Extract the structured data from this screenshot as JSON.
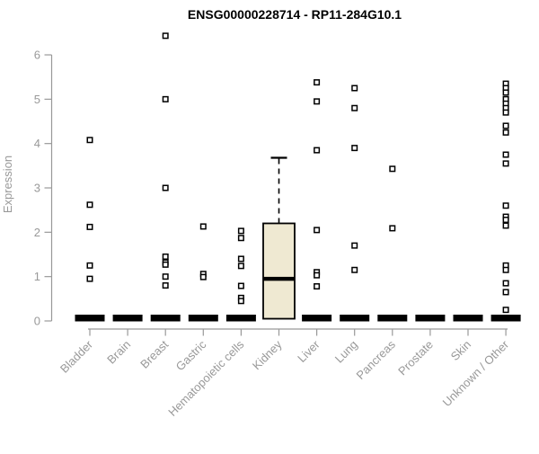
{
  "chart_data": {
    "type": "boxplot",
    "title": "ENSG00000228714 - RP11-284G10.1",
    "ylabel": "Expression",
    "xlabel": "",
    "ylim": [
      0,
      6.6
    ],
    "yticks": [
      0,
      1,
      2,
      3,
      4,
      5,
      6
    ],
    "grid": false,
    "legend": "none",
    "colors": {
      "box_fill": "#efe9d2",
      "box_stroke": "#000000",
      "axis": "#999999",
      "marker": "#000000",
      "title": "#000000"
    },
    "categories": [
      "Bladder",
      "Brain",
      "Breast",
      "Gastric",
      "Hematopoietic cells",
      "Kidney",
      "Liver",
      "Lung",
      "Pancreas",
      "Prostate",
      "Skin",
      "Unknown / Other"
    ],
    "series": [
      {
        "category": "Bladder",
        "box": {
          "q1": 0,
          "median": 0,
          "q3": 0,
          "whisker_low": 0,
          "whisker_high": 0
        },
        "outliers": [
          4.08,
          2.62,
          2.12,
          1.25,
          0.95
        ]
      },
      {
        "category": "Brain",
        "box": {
          "q1": 0,
          "median": 0,
          "q3": 0,
          "whisker_low": 0,
          "whisker_high": 0
        },
        "outliers": []
      },
      {
        "category": "Breast",
        "box": {
          "q1": 0,
          "median": 0,
          "q3": 0,
          "whisker_low": 0,
          "whisker_high": 0
        },
        "outliers": [
          6.43,
          5.0,
          3.0,
          1.45,
          1.32,
          1.27,
          1.0,
          0.8
        ]
      },
      {
        "category": "Gastric",
        "box": {
          "q1": 0,
          "median": 0,
          "q3": 0,
          "whisker_low": 0,
          "whisker_high": 0
        },
        "outliers": [
          2.13,
          1.06,
          0.99
        ]
      },
      {
        "category": "Hematopoietic cells",
        "box": {
          "q1": 0,
          "median": 0,
          "q3": 0,
          "whisker_low": 0,
          "whisker_high": 0
        },
        "outliers": [
          2.03,
          1.87,
          1.4,
          1.24,
          0.79,
          0.52,
          0.45
        ]
      },
      {
        "category": "Kidney",
        "box": {
          "q1": 0.05,
          "median": 0.95,
          "q3": 2.2,
          "whisker_low": 0.05,
          "whisker_high": 3.68
        },
        "outliers": []
      },
      {
        "category": "Liver",
        "box": {
          "q1": 0,
          "median": 0,
          "q3": 0,
          "whisker_low": 0,
          "whisker_high": 0
        },
        "outliers": [
          5.38,
          4.95,
          3.85,
          2.05,
          1.1,
          1.03,
          0.78
        ]
      },
      {
        "category": "Lung",
        "box": {
          "q1": 0,
          "median": 0,
          "q3": 0,
          "whisker_low": 0,
          "whisker_high": 0
        },
        "outliers": [
          5.25,
          4.8,
          3.9,
          1.7,
          1.15
        ]
      },
      {
        "category": "Pancreas",
        "box": {
          "q1": 0,
          "median": 0,
          "q3": 0,
          "whisker_low": 0,
          "whisker_high": 0
        },
        "outliers": [
          3.43,
          2.09
        ]
      },
      {
        "category": "Prostate",
        "box": {
          "q1": 0,
          "median": 0,
          "q3": 0,
          "whisker_low": 0,
          "whisker_high": 0
        },
        "outliers": []
      },
      {
        "category": "Skin",
        "box": {
          "q1": 0,
          "median": 0,
          "q3": 0,
          "whisker_low": 0,
          "whisker_high": 0
        },
        "outliers": []
      },
      {
        "category": "Unknown / Other",
        "box": {
          "q1": 0,
          "median": 0,
          "q3": 0,
          "whisker_low": 0,
          "whisker_high": 0
        },
        "outliers": [
          5.35,
          5.25,
          5.15,
          5.0,
          4.9,
          4.8,
          4.7,
          4.4,
          4.25,
          3.75,
          3.55,
          2.6,
          2.35,
          2.28,
          2.15,
          1.25,
          1.15,
          0.85,
          0.65,
          0.25
        ]
      }
    ]
  }
}
